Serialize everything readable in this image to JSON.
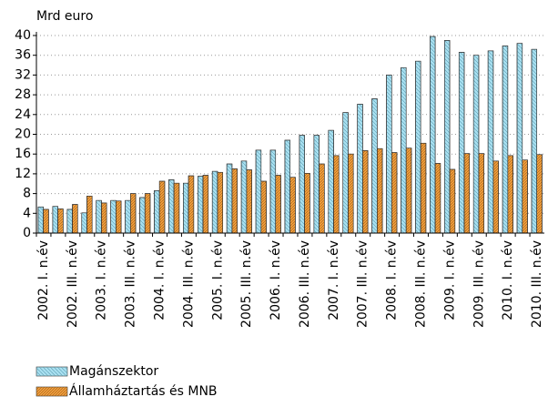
{
  "chart_data": {
    "type": "bar",
    "y_label": "Mrd euro",
    "categories": [
      "2002. I. n.év",
      null,
      "2002. III. n.év",
      null,
      "2003. I. n.év",
      null,
      "2003. III. n.év",
      null,
      "2004. I. n.év",
      null,
      "2004. III. n.év",
      null,
      "2005. I. n.év",
      null,
      "2005. III. n.év",
      null,
      "2006. I. n.év",
      null,
      "2006. III. n.év",
      null,
      "2007. I. n.év",
      null,
      "2007. III. n.év",
      null,
      "2008. I. n.év",
      null,
      "2008. III. n.év",
      null,
      "2009. I. n.év",
      null,
      "2009. III. n.év",
      null,
      "2010. I. n.év",
      null,
      "2010. III. n.év"
    ],
    "series": [
      {
        "name": "Magánszektor",
        "color": "#a8e0f0",
        "values": [
          5.3,
          5.4,
          4.8,
          4.1,
          6.6,
          6.6,
          6.6,
          7.2,
          8.6,
          10.8,
          10.1,
          11.5,
          12.5,
          14.0,
          14.6,
          16.8,
          16.8,
          18.8,
          19.8,
          19.8,
          20.8,
          24.4,
          26.1,
          27.2,
          32.0,
          33.5,
          34.8,
          39.8,
          39.0,
          36.6,
          36.0,
          36.9,
          37.9,
          38.4,
          37.2
        ]
      },
      {
        "name": "Államháztartás és MNB",
        "color": "#f0a040",
        "values": [
          4.8,
          4.9,
          5.8,
          7.5,
          6.1,
          6.5,
          8.0,
          8.0,
          10.5,
          10.1,
          11.6,
          11.7,
          12.3,
          13.0,
          12.8,
          10.5,
          11.7,
          11.3,
          12.1,
          14.0,
          15.7,
          16.0,
          16.7,
          17.1,
          16.3,
          17.2,
          18.2,
          14.1,
          12.9,
          16.1,
          16.1,
          14.6,
          15.7,
          14.8,
          15.9
        ]
      }
    ],
    "ylim": [
      0,
      40
    ],
    "yticks": [
      0,
      4,
      8,
      12,
      16,
      20,
      24,
      28,
      32,
      36,
      40
    ],
    "grid": true,
    "legend": "bottom"
  }
}
